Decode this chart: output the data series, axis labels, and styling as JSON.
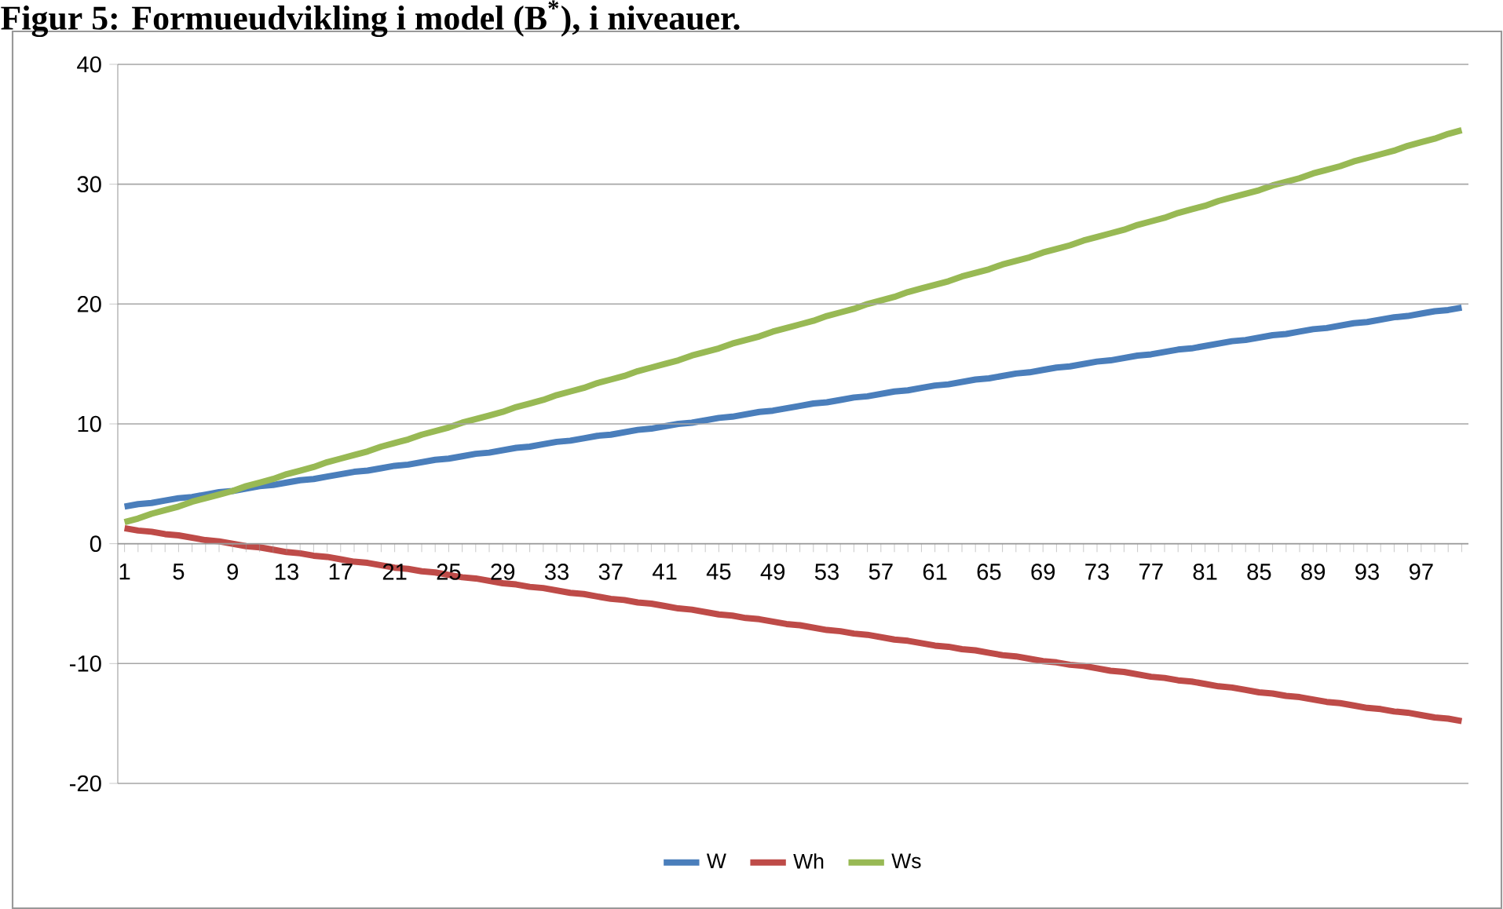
{
  "chart_data": {
    "type": "line",
    "title": "Figur 5: Formueudvikling i model (B$^{*}$), i niveauer.",
    "categories": [
      "1",
      null,
      null,
      null,
      "5",
      null,
      null,
      null,
      "9",
      null,
      null,
      null,
      "13",
      null,
      null,
      null,
      "17",
      null,
      null,
      null,
      "21",
      null,
      null,
      null,
      "25",
      null,
      null,
      null,
      "29",
      null,
      null,
      null,
      "33",
      null,
      null,
      null,
      "37",
      null,
      null,
      null,
      "41",
      null,
      null,
      null,
      "45",
      null,
      null,
      null,
      "49",
      null,
      null,
      null,
      "53",
      null,
      null,
      null,
      "57",
      null,
      null,
      null,
      "61",
      null,
      null,
      null,
      "65",
      null,
      null,
      null,
      "69",
      null,
      null,
      null,
      "73",
      null,
      null,
      null,
      "77",
      null,
      null,
      null,
      "81",
      null,
      null,
      null,
      "85",
      null,
      null,
      null,
      "89",
      null,
      null,
      null,
      "93",
      null,
      null,
      null,
      "97",
      null,
      null,
      null
    ],
    "series": [
      {
        "name": "W",
        "color": "#4a7ebb",
        "values": [
          3.1,
          3.3,
          3.4,
          3.6,
          3.8,
          3.9,
          4.1,
          4.3,
          4.4,
          4.6,
          4.8,
          4.9,
          5.1,
          5.3,
          5.4,
          5.6,
          5.8,
          6.0,
          6.1,
          6.3,
          6.5,
          6.6,
          6.8,
          7.0,
          7.1,
          7.3,
          7.5,
          7.6,
          7.8,
          8.0,
          8.1,
          8.3,
          8.5,
          8.6,
          8.8,
          9.0,
          9.1,
          9.3,
          9.5,
          9.6,
          9.8,
          10.0,
          10.1,
          10.3,
          10.5,
          10.6,
          10.8,
          11.0,
          11.1,
          11.3,
          11.5,
          11.7,
          11.8,
          12.0,
          12.2,
          12.3,
          12.5,
          12.7,
          12.8,
          13.0,
          13.2,
          13.3,
          13.5,
          13.7,
          13.8,
          14.0,
          14.2,
          14.3,
          14.5,
          14.7,
          14.8,
          15.0,
          15.2,
          15.3,
          15.5,
          15.7,
          15.8,
          16.0,
          16.2,
          16.3,
          16.5,
          16.7,
          16.9,
          17.0,
          17.2,
          17.4,
          17.5,
          17.7,
          17.9,
          18.0,
          18.2,
          18.4,
          18.5,
          18.7,
          18.9,
          19.0,
          19.2,
          19.4,
          19.5,
          19.7
        ]
      },
      {
        "name": "Wh",
        "color": "#be4b48",
        "values": [
          1.3,
          1.1,
          1.0,
          0.8,
          0.7,
          0.5,
          0.3,
          0.2,
          0.0,
          -0.2,
          -0.3,
          -0.5,
          -0.7,
          -0.8,
          -1.0,
          -1.1,
          -1.3,
          -1.5,
          -1.6,
          -1.8,
          -2.0,
          -2.1,
          -2.3,
          -2.4,
          -2.6,
          -2.8,
          -2.9,
          -3.1,
          -3.3,
          -3.4,
          -3.6,
          -3.7,
          -3.9,
          -4.1,
          -4.2,
          -4.4,
          -4.6,
          -4.7,
          -4.9,
          -5.0,
          -5.2,
          -5.4,
          -5.5,
          -5.7,
          -5.9,
          -6.0,
          -6.2,
          -6.3,
          -6.5,
          -6.7,
          -6.8,
          -7.0,
          -7.2,
          -7.3,
          -7.5,
          -7.6,
          -7.8,
          -8.0,
          -8.1,
          -8.3,
          -8.5,
          -8.6,
          -8.8,
          -8.9,
          -9.1,
          -9.3,
          -9.4,
          -9.6,
          -9.8,
          -9.9,
          -10.1,
          -10.2,
          -10.4,
          -10.6,
          -10.7,
          -10.9,
          -11.1,
          -11.2,
          -11.4,
          -11.5,
          -11.7,
          -11.9,
          -12.0,
          -12.2,
          -12.4,
          -12.5,
          -12.7,
          -12.8,
          -13.0,
          -13.2,
          -13.3,
          -13.5,
          -13.7,
          -13.8,
          -14.0,
          -14.1,
          -14.3,
          -14.5,
          -14.6,
          -14.8
        ]
      },
      {
        "name": "Ws",
        "color": "#98b954",
        "values": [
          1.8,
          2.1,
          2.5,
          2.8,
          3.1,
          3.5,
          3.8,
          4.1,
          4.4,
          4.8,
          5.1,
          5.4,
          5.8,
          6.1,
          6.4,
          6.8,
          7.1,
          7.4,
          7.7,
          8.1,
          8.4,
          8.7,
          9.1,
          9.4,
          9.7,
          10.1,
          10.4,
          10.7,
          11.0,
          11.4,
          11.7,
          12.0,
          12.4,
          12.7,
          13.0,
          13.4,
          13.7,
          14.0,
          14.4,
          14.7,
          15.0,
          15.3,
          15.7,
          16.0,
          16.3,
          16.7,
          17.0,
          17.3,
          17.7,
          18.0,
          18.3,
          18.6,
          19.0,
          19.3,
          19.6,
          20.0,
          20.3,
          20.6,
          21.0,
          21.3,
          21.6,
          21.9,
          22.3,
          22.6,
          22.9,
          23.3,
          23.6,
          23.9,
          24.3,
          24.6,
          24.9,
          25.3,
          25.6,
          25.9,
          26.2,
          26.6,
          26.9,
          27.2,
          27.6,
          27.9,
          28.2,
          28.6,
          28.9,
          29.2,
          29.5,
          29.9,
          30.2,
          30.5,
          30.9,
          31.2,
          31.5,
          31.9,
          32.2,
          32.5,
          32.8,
          33.2,
          33.5,
          33.8,
          34.2,
          34.5
        ]
      }
    ],
    "ylim": [
      -20,
      40
    ],
    "yticks": [
      -20,
      -10,
      0,
      10,
      20,
      30,
      40
    ],
    "grid": "y",
    "legend": "bottom"
  }
}
